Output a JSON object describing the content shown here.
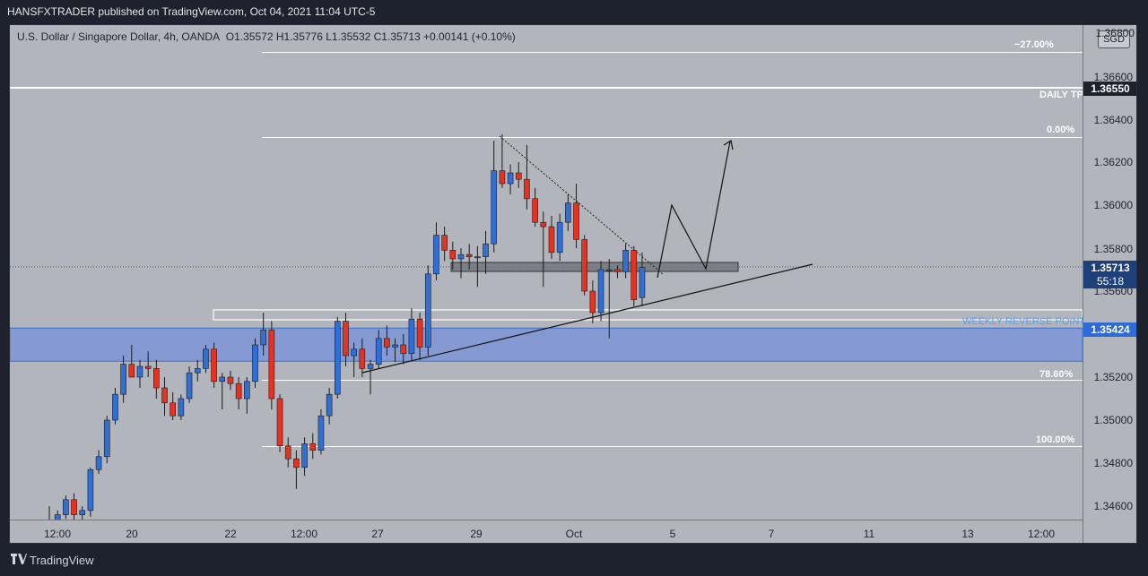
{
  "header": {
    "published_text": "HANSFXTRADER published on TradingView.com, Oct 04, 2021 11:04 UTC-5"
  },
  "legend": {
    "symbol": "U.S. Dollar / Singapore Dollar, 4h, OANDA",
    "open": "O1.35572",
    "high": "H1.35776",
    "low": "L1.35532",
    "close": "C1.35713",
    "change": "+0.00141 (+0.10%)"
  },
  "currency_button": "SGD",
  "price_axis": {
    "ticks": [
      "1.36600",
      "1.36400",
      "1.36200",
      "1.36000",
      "1.35800",
      "1.35600",
      "1.35200",
      "1.35000",
      "1.34800",
      "1.34600"
    ],
    "top_partial": "1.36800"
  },
  "time_axis": {
    "labels": [
      "12:00",
      "20",
      "22",
      "12:00",
      "27",
      "29",
      "Oct",
      "5",
      "7",
      "11",
      "13",
      "12:00"
    ]
  },
  "badges": {
    "daily_tp": "1.36550",
    "current_price": "1.35713",
    "countdown": "55:18",
    "weekly": "1.35424"
  },
  "levels": {
    "fib_neg27": "−27.00%",
    "fib_0": "0.00%",
    "fib_786": "78.60%",
    "fib_100": "100.00%",
    "daily_tp": "DAILY TP",
    "weekly_reverse": "WEEKLY REVERSE POINT"
  },
  "colors": {
    "background": "#b3b5bd",
    "up_candle": "#2f6fd6",
    "down_candle": "#e8321f",
    "zone": "#7c95d6",
    "badge_dark": "#1e222d",
    "weekly_badge": "#2e6bd6",
    "current_badge": "#1d3f7a"
  },
  "footer": {
    "brand": "TradingView"
  },
  "chart_data": {
    "type": "candlestick",
    "y_range": [
      1.3449,
      1.368
    ],
    "candles": [
      [
        1.3453,
        1.346,
        1.345,
        1.3452
      ],
      [
        1.3452,
        1.3458,
        1.345,
        1.3456
      ],
      [
        1.3456,
        1.3465,
        1.3454,
        1.3463
      ],
      [
        1.3463,
        1.3466,
        1.3452,
        1.3456
      ],
      [
        1.3456,
        1.346,
        1.3451,
        1.3458
      ],
      [
        1.3458,
        1.3478,
        1.3455,
        1.3477
      ],
      [
        1.3477,
        1.3486,
        1.3475,
        1.3483
      ],
      [
        1.3483,
        1.3502,
        1.348,
        1.35
      ],
      [
        1.35,
        1.3515,
        1.3498,
        1.3512
      ],
      [
        1.3512,
        1.353,
        1.3508,
        1.3526
      ],
      [
        1.3526,
        1.3535,
        1.352,
        1.352
      ],
      [
        1.352,
        1.3528,
        1.3515,
        1.3525
      ],
      [
        1.3525,
        1.3532,
        1.352,
        1.3524
      ],
      [
        1.3524,
        1.3528,
        1.351,
        1.3515
      ],
      [
        1.3515,
        1.352,
        1.3502,
        1.3508
      ],
      [
        1.3508,
        1.3513,
        1.35,
        1.3502
      ],
      [
        1.3502,
        1.3512,
        1.35,
        1.351
      ],
      [
        1.351,
        1.3525,
        1.3508,
        1.3522
      ],
      [
        1.3522,
        1.3528,
        1.3518,
        1.3524
      ],
      [
        1.3524,
        1.3535,
        1.3522,
        1.3533
      ],
      [
        1.3533,
        1.3536,
        1.3515,
        1.3518
      ],
      [
        1.3518,
        1.3522,
        1.3505,
        1.352
      ],
      [
        1.352,
        1.3523,
        1.3514,
        1.3517
      ],
      [
        1.3517,
        1.352,
        1.3505,
        1.351
      ],
      [
        1.351,
        1.352,
        1.3503,
        1.3518
      ],
      [
        1.3518,
        1.3538,
        1.3515,
        1.3535
      ],
      [
        1.3535,
        1.355,
        1.353,
        1.3542
      ],
      [
        1.3542,
        1.3546,
        1.3505,
        1.351
      ],
      [
        1.351,
        1.3512,
        1.3485,
        1.3488
      ],
      [
        1.3488,
        1.3492,
        1.3478,
        1.3482
      ],
      [
        1.3482,
        1.3486,
        1.3468,
        1.3478
      ],
      [
        1.3478,
        1.3492,
        1.3474,
        1.3489
      ],
      [
        1.3489,
        1.3494,
        1.3482,
        1.3486
      ],
      [
        1.3486,
        1.3505,
        1.3484,
        1.3502
      ],
      [
        1.3502,
        1.3515,
        1.3498,
        1.3512
      ],
      [
        1.3512,
        1.3548,
        1.351,
        1.3546
      ],
      [
        1.3546,
        1.355,
        1.3525,
        1.353
      ],
      [
        1.353,
        1.3536,
        1.352,
        1.3533
      ],
      [
        1.3533,
        1.3538,
        1.352,
        1.3524
      ],
      [
        1.3524,
        1.3528,
        1.3512,
        1.3526
      ],
      [
        1.3526,
        1.3542,
        1.3524,
        1.3538
      ],
      [
        1.3538,
        1.3544,
        1.353,
        1.3534
      ],
      [
        1.3534,
        1.3538,
        1.3527,
        1.3535
      ],
      [
        1.3535,
        1.354,
        1.3526,
        1.3531
      ],
      [
        1.3531,
        1.3552,
        1.3528,
        1.3547
      ],
      [
        1.3547,
        1.355,
        1.3528,
        1.3534
      ],
      [
        1.3534,
        1.3572,
        1.353,
        1.3568
      ],
      [
        1.3568,
        1.3592,
        1.3565,
        1.3586
      ],
      [
        1.3586,
        1.359,
        1.3574,
        1.3579
      ],
      [
        1.3579,
        1.3583,
        1.357,
        1.3575
      ],
      [
        1.3575,
        1.358,
        1.3566,
        1.3577
      ],
      [
        1.3577,
        1.3582,
        1.357,
        1.3576
      ],
      [
        1.3576,
        1.3581,
        1.3562,
        1.3576
      ],
      [
        1.3576,
        1.3588,
        1.3568,
        1.3582
      ],
      [
        1.3582,
        1.363,
        1.3578,
        1.3616
      ],
      [
        1.3616,
        1.3633,
        1.3608,
        1.361
      ],
      [
        1.361,
        1.3619,
        1.3605,
        1.3615
      ],
      [
        1.3615,
        1.362,
        1.3608,
        1.3612
      ],
      [
        1.3612,
        1.3628,
        1.3598,
        1.3603
      ],
      [
        1.3603,
        1.3608,
        1.359,
        1.3592
      ],
      [
        1.3592,
        1.3597,
        1.3562,
        1.359
      ],
      [
        1.359,
        1.3595,
        1.3575,
        1.3578
      ],
      [
        1.3578,
        1.3596,
        1.3574,
        1.3592
      ],
      [
        1.3592,
        1.3605,
        1.3588,
        1.3601
      ],
      [
        1.3601,
        1.361,
        1.358,
        1.3584
      ],
      [
        1.3584,
        1.3586,
        1.3558,
        1.356
      ],
      [
        1.356,
        1.3565,
        1.3545,
        1.355
      ],
      [
        1.355,
        1.3574,
        1.3546,
        1.357
      ],
      [
        1.357,
        1.3575,
        1.3538,
        1.357
      ],
      [
        1.357,
        1.3572,
        1.3566,
        1.3569
      ],
      [
        1.3569,
        1.3582,
        1.3566,
        1.3579
      ],
      [
        1.3579,
        1.3581,
        1.3553,
        1.3556
      ],
      [
        1.3557,
        1.3578,
        1.3553,
        1.3571
      ]
    ]
  }
}
